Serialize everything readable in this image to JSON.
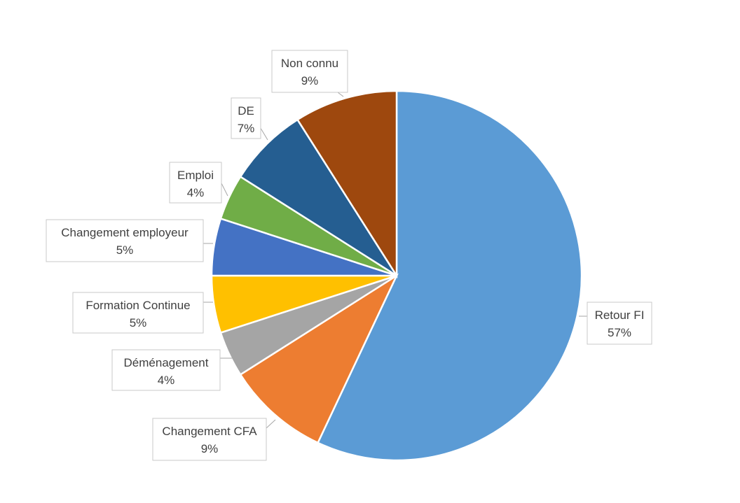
{
  "chart_data": {
    "type": "pie",
    "title": "",
    "start_angle_deg": 0,
    "direction": "clockwise",
    "slices": [
      {
        "label": "Retour FI",
        "percent_label": "57%",
        "value": 57,
        "color": "#5b9bd5"
      },
      {
        "label": "Changement CFA",
        "percent_label": "9%",
        "value": 9,
        "color": "#ed7d31"
      },
      {
        "label": "Déménagement",
        "percent_label": "4%",
        "value": 4,
        "color": "#a5a5a5"
      },
      {
        "label": "Formation Continue",
        "percent_label": "5%",
        "value": 5,
        "color": "#ffc000"
      },
      {
        "label": "Changement employeur",
        "percent_label": "5%",
        "value": 5,
        "color": "#4472c4"
      },
      {
        "label": "Emploi",
        "percent_label": "4%",
        "value": 4,
        "color": "#70ad47"
      },
      {
        "label": "DE",
        "percent_label": "7%",
        "value": 7,
        "color": "#255e91"
      },
      {
        "label": "Non connu",
        "percent_label": "9%",
        "value": 9,
        "color": "#9e480e"
      }
    ]
  }
}
